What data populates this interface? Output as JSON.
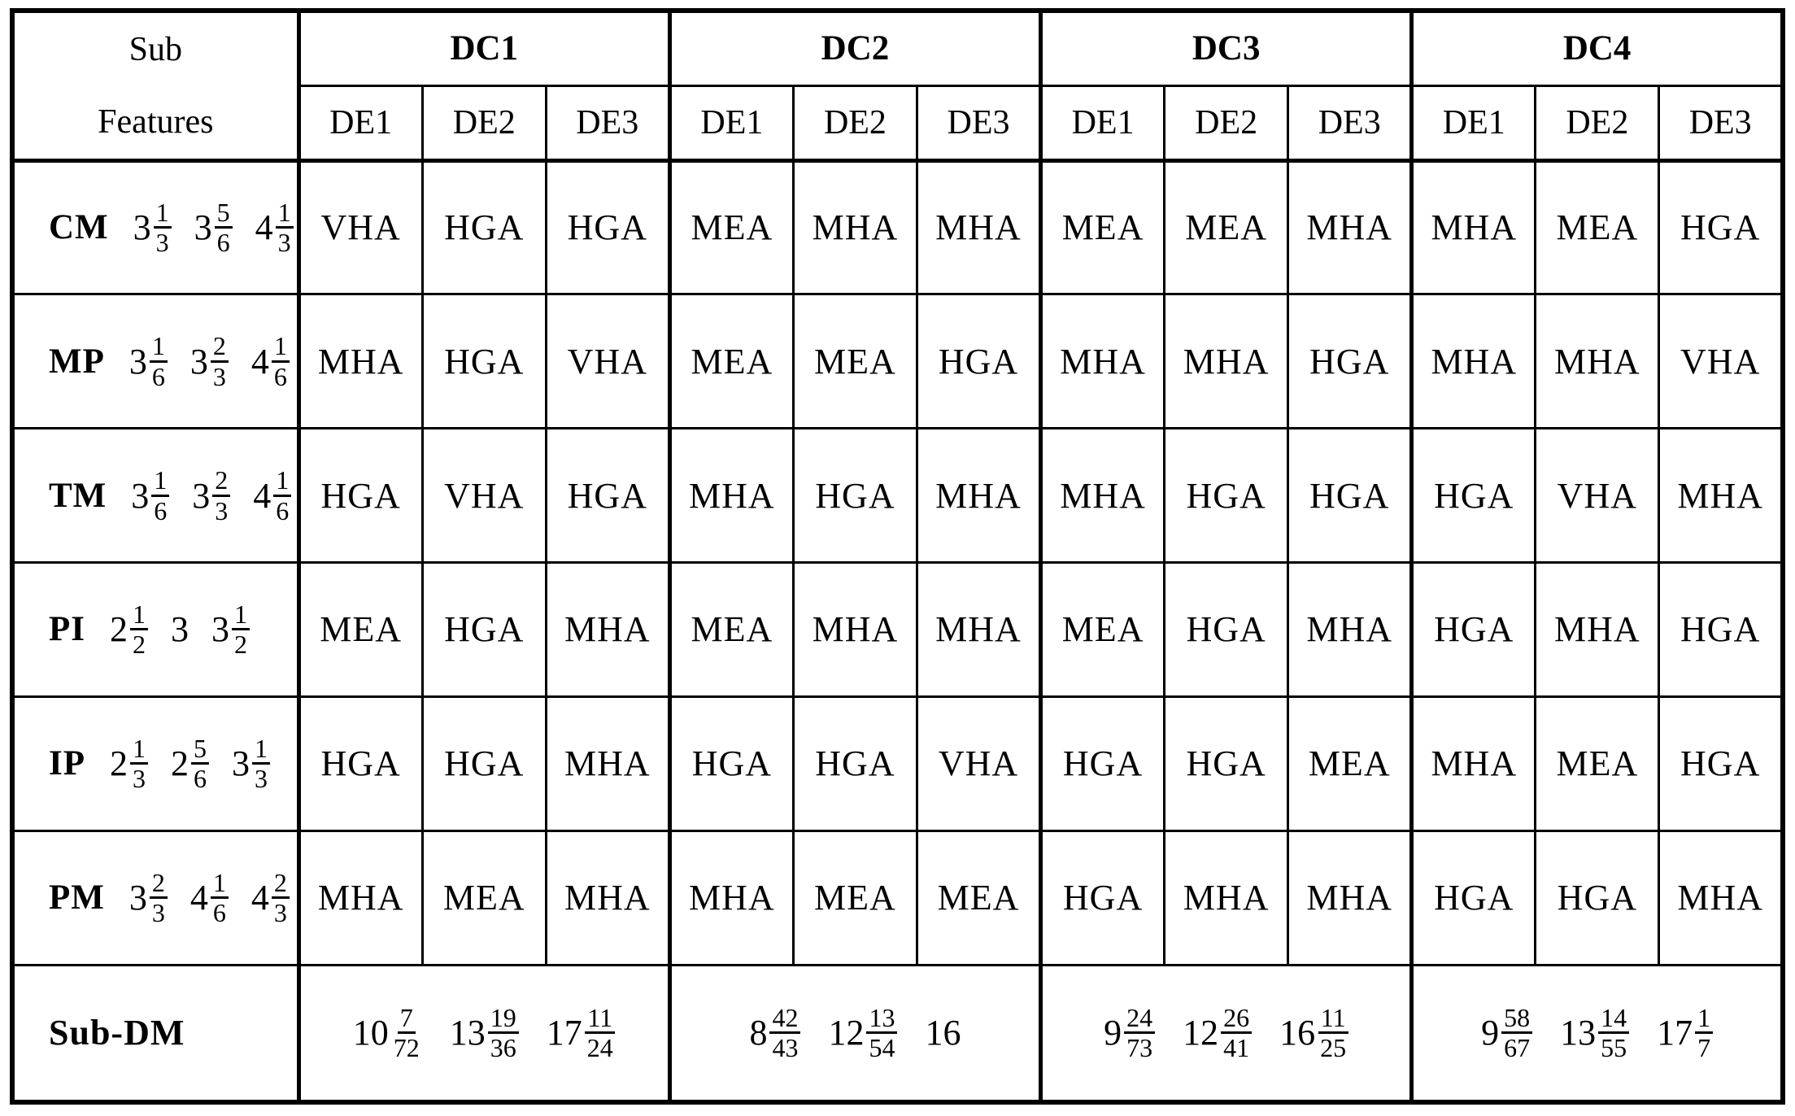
{
  "table": {
    "corner": {
      "line1": "Sub",
      "line2": "Features"
    },
    "groups": [
      {
        "label": "DC1",
        "subcols": [
          "DE1",
          "DE2",
          "DE3"
        ]
      },
      {
        "label": "DC2",
        "subcols": [
          "DE1",
          "DE2",
          "DE3"
        ]
      },
      {
        "label": "DC3",
        "subcols": [
          "DE1",
          "DE2",
          "DE3"
        ]
      },
      {
        "label": "DC4",
        "subcols": [
          "DE1",
          "DE2",
          "DE3"
        ]
      }
    ],
    "rows": [
      {
        "feature": "CM",
        "weights": [
          {
            "whole": "3",
            "num": "1",
            "den": "3"
          },
          {
            "whole": "3",
            "num": "5",
            "den": "6"
          },
          {
            "whole": "4",
            "num": "1",
            "den": "3"
          }
        ],
        "values": [
          "VHA",
          "HGA",
          "HGA",
          "MEA",
          "MHA",
          "MHA",
          "MEA",
          "MEA",
          "MHA",
          "MHA",
          "MEA",
          "HGA"
        ]
      },
      {
        "feature": "MP",
        "weights": [
          {
            "whole": "3",
            "num": "1",
            "den": "6"
          },
          {
            "whole": "3",
            "num": "2",
            "den": "3"
          },
          {
            "whole": "4",
            "num": "1",
            "den": "6"
          }
        ],
        "values": [
          "MHA",
          "HGA",
          "VHA",
          "MEA",
          "MEA",
          "HGA",
          "MHA",
          "MHA",
          "HGA",
          "MHA",
          "MHA",
          "VHA"
        ]
      },
      {
        "feature": "TM",
        "weights": [
          {
            "whole": "3",
            "num": "1",
            "den": "6"
          },
          {
            "whole": "3",
            "num": "2",
            "den": "3"
          },
          {
            "whole": "4",
            "num": "1",
            "den": "6"
          }
        ],
        "values": [
          "HGA",
          "VHA",
          "HGA",
          "MHA",
          "HGA",
          "MHA",
          "MHA",
          "HGA",
          "HGA",
          "HGA",
          "VHA",
          "MHA"
        ]
      },
      {
        "feature": "PI",
        "weights": [
          {
            "whole": "2",
            "num": "1",
            "den": "2"
          },
          {
            "whole": "3"
          },
          {
            "whole": "3",
            "num": "1",
            "den": "2"
          }
        ],
        "values": [
          "MEA",
          "HGA",
          "MHA",
          "MEA",
          "MHA",
          "MHA",
          "MEA",
          "HGA",
          "MHA",
          "HGA",
          "MHA",
          "HGA"
        ]
      },
      {
        "feature": "IP",
        "weights": [
          {
            "whole": "2",
            "num": "1",
            "den": "3"
          },
          {
            "whole": "2",
            "num": "5",
            "den": "6"
          },
          {
            "whole": "3",
            "num": "1",
            "den": "3"
          }
        ],
        "values": [
          "HGA",
          "HGA",
          "MHA",
          "HGA",
          "HGA",
          "VHA",
          "HGA",
          "HGA",
          "MEA",
          "MHA",
          "MEA",
          "HGA"
        ]
      },
      {
        "feature": "PM",
        "weights": [
          {
            "whole": "3",
            "num": "2",
            "den": "3"
          },
          {
            "whole": "4",
            "num": "1",
            "den": "6"
          },
          {
            "whole": "4",
            "num": "2",
            "den": "3"
          }
        ],
        "values": [
          "MHA",
          "MEA",
          "MHA",
          "MHA",
          "MEA",
          "MEA",
          "HGA",
          "MHA",
          "MHA",
          "HGA",
          "HGA",
          "MHA"
        ]
      }
    ],
    "footer": {
      "label": "Sub-DM",
      "groups": [
        [
          {
            "whole": "10",
            "num": "7",
            "den": "72"
          },
          {
            "whole": "13",
            "num": "19",
            "den": "36"
          },
          {
            "whole": "17",
            "num": "11",
            "den": "24"
          }
        ],
        [
          {
            "whole": "8",
            "num": "42",
            "den": "43"
          },
          {
            "whole": "12",
            "num": "13",
            "den": "54"
          },
          {
            "whole": "16"
          }
        ],
        [
          {
            "whole": "9",
            "num": "24",
            "den": "73"
          },
          {
            "whole": "12",
            "num": "26",
            "den": "41"
          },
          {
            "whole": "16",
            "num": "11",
            "den": "25"
          }
        ],
        [
          {
            "whole": "9",
            "num": "58",
            "den": "67"
          },
          {
            "whole": "13",
            "num": "14",
            "den": "55"
          },
          {
            "whole": "17",
            "num": "1",
            "den": "7"
          }
        ]
      ]
    }
  }
}
